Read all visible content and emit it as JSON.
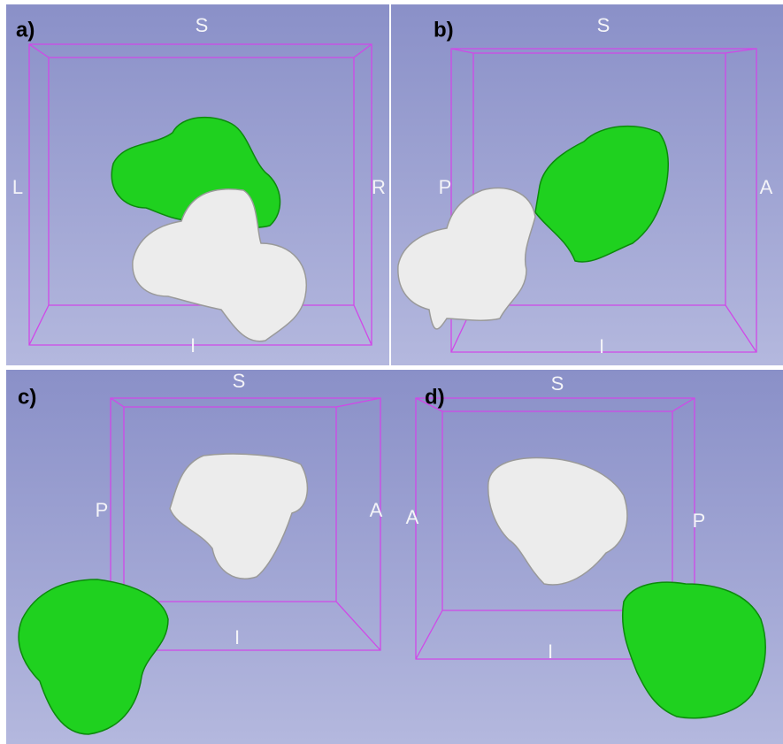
{
  "panels": [
    {
      "label": "a)",
      "top": "S",
      "bottom": "I",
      "left": "L",
      "right": "R"
    },
    {
      "label": "b)",
      "top": "S",
      "bottom": "I",
      "left": "P",
      "right": "A"
    },
    {
      "label": "c)",
      "top": "S",
      "bottom": "I",
      "left": "P",
      "right": "A"
    },
    {
      "label": "d)",
      "top": "S",
      "bottom": "I",
      "left": "A",
      "right": "P"
    }
  ]
}
